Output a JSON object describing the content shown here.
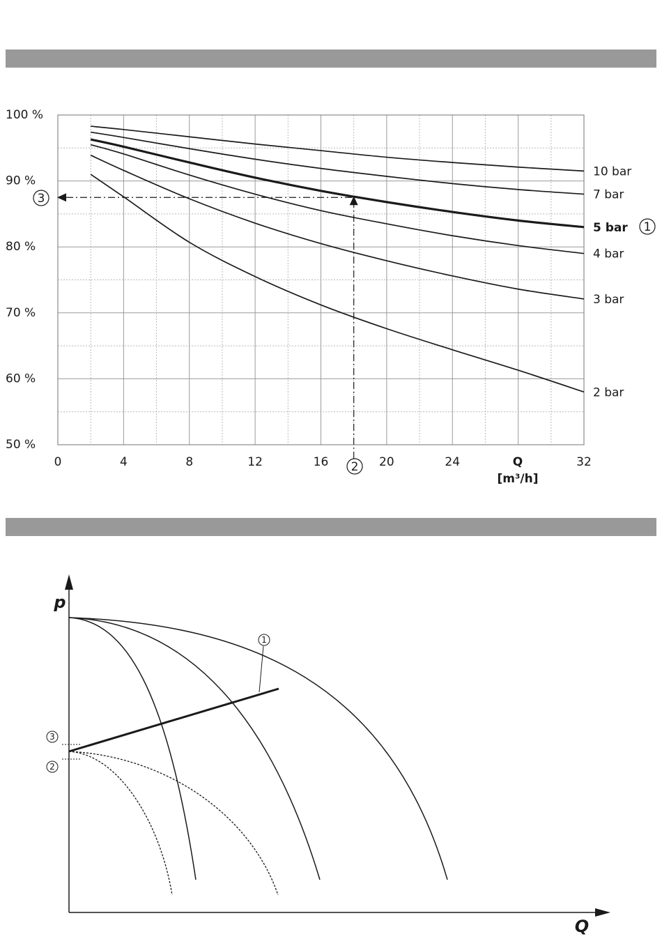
{
  "colors": {
    "banner": "#999999",
    "line": "#1a1a1a",
    "grid": "#b0b0b0"
  },
  "chart_data": [
    {
      "type": "line",
      "title": "",
      "xlabel": "Q",
      "xunit": "[m³/h]",
      "ylabel": "",
      "xlim": [
        0,
        32
      ],
      "ylim": [
        50,
        100
      ],
      "x_ticks": [
        {
          "value": 0,
          "label": "0"
        },
        {
          "value": 4,
          "label": "4"
        },
        {
          "value": 8,
          "label": "8"
        },
        {
          "value": 12,
          "label": "12"
        },
        {
          "value": 16,
          "label": "16"
        },
        {
          "value": 20,
          "label": "20"
        },
        {
          "value": 24,
          "label": "24"
        },
        {
          "value": 32,
          "label": "32"
        }
      ],
      "y_ticks": [
        {
          "value": 100,
          "label": "100 %"
        },
        {
          "value": 90,
          "label": "90 %"
        },
        {
          "value": 80,
          "label": "80 %"
        },
        {
          "value": 70,
          "label": "70 %"
        },
        {
          "value": 60,
          "label": "60 %"
        },
        {
          "value": 50,
          "label": "50 %"
        }
      ],
      "grid": true,
      "series": [
        {
          "name": "10 bar",
          "label": "10 bar",
          "bold": false,
          "x": [
            2,
            4,
            8,
            12,
            16,
            20,
            24,
            28,
            32
          ],
          "values": [
            98.3,
            97.8,
            96.7,
            95.6,
            94.6,
            93.6,
            92.8,
            92.1,
            91.5
          ]
        },
        {
          "name": "7 bar",
          "label": "7 bar",
          "bold": false,
          "x": [
            2,
            4,
            8,
            12,
            16,
            20,
            24,
            28,
            32
          ],
          "values": [
            97.4,
            96.6,
            94.9,
            93.3,
            91.9,
            90.7,
            89.6,
            88.7,
            88.0
          ]
        },
        {
          "name": "5 bar",
          "label": "5 bar",
          "bold": true,
          "x": [
            2,
            4,
            8,
            12,
            16,
            20,
            24,
            28,
            32
          ],
          "values": [
            96.3,
            95.2,
            92.8,
            90.5,
            88.5,
            86.8,
            85.3,
            84.0,
            83.0
          ]
        },
        {
          "name": "4 bar",
          "label": "4 bar",
          "bold": false,
          "x": [
            2,
            4,
            8,
            12,
            16,
            20,
            24,
            28,
            32
          ],
          "values": [
            95.5,
            94.1,
            90.9,
            88.0,
            85.5,
            83.5,
            81.7,
            80.2,
            79.0
          ]
        },
        {
          "name": "3 bar",
          "label": "3 bar",
          "bold": false,
          "x": [
            2,
            4,
            8,
            12,
            16,
            20,
            24,
            28,
            32
          ],
          "values": [
            93.9,
            91.6,
            87.3,
            83.6,
            80.5,
            77.9,
            75.6,
            73.6,
            72.1
          ]
        },
        {
          "name": "2 bar",
          "label": "2 bar",
          "bold": false,
          "x": [
            2,
            4,
            8,
            12,
            16,
            20,
            24,
            28,
            32
          ],
          "values": [
            91.0,
            87.6,
            80.7,
            75.5,
            71.2,
            67.6,
            64.4,
            61.3,
            58.0
          ]
        }
      ],
      "annotations": [
        {
          "marker": "1",
          "symbol": "①",
          "text": "5 bar",
          "meaning": "selected curve"
        },
        {
          "marker": "2",
          "symbol": "②",
          "x": 18,
          "meaning": "flow rate"
        },
        {
          "marker": "3",
          "symbol": "③",
          "y": 87.5,
          "meaning": "read-off percentage"
        }
      ]
    },
    {
      "type": "line",
      "title": "",
      "xlabel": "Q",
      "ylabel": "p",
      "grid": false,
      "annotations": [
        {
          "marker": "1",
          "symbol": "①"
        },
        {
          "marker": "2",
          "symbol": "②"
        },
        {
          "marker": "3",
          "symbol": "③"
        }
      ]
    }
  ]
}
